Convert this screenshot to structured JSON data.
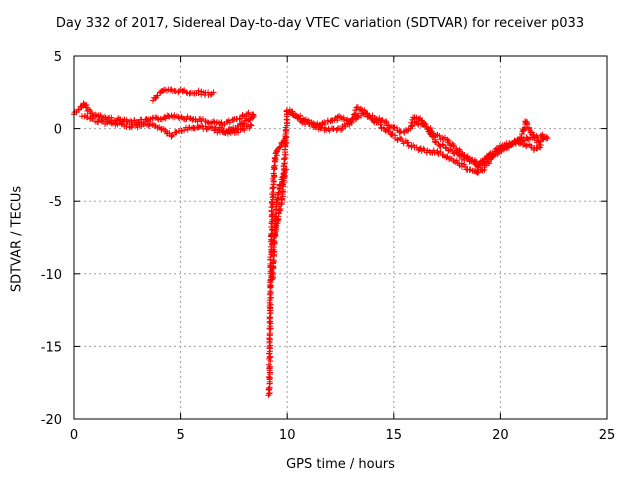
{
  "chart_data": {
    "type": "scatter",
    "title": "Day 332 of 2017, Sidereal Day-to-day VTEC variation (SDTVAR) for receiver p033",
    "xlabel": "GPS time / hours",
    "ylabel": "SDTVAR / TECUs",
    "xlim": [
      0,
      25
    ],
    "ylim": [
      -20,
      5
    ],
    "xticks": [
      0,
      5,
      10,
      15,
      20,
      25
    ],
    "yticks": [
      5,
      0,
      -5,
      -10,
      -15,
      -20
    ],
    "grid": true,
    "marker": "+",
    "series": [
      {
        "name": "SDTVAR",
        "color": "#ff0000",
        "tracks": [
          {
            "x": [
              0.0,
              0.2,
              0.4,
              0.5,
              0.6,
              0.8,
              1.0,
              1.3,
              1.6,
              2.0,
              2.4,
              2.8,
              3.2,
              3.6,
              4.0,
              4.4,
              4.7,
              5.0,
              5.4,
              5.8,
              6.2,
              6.6,
              7.0,
              7.4,
              7.8,
              8.2,
              8.5
            ],
            "y": [
              1.0,
              1.3,
              1.5,
              1.7,
              1.4,
              1.1,
              0.9,
              0.8,
              0.7,
              0.6,
              0.6,
              0.5,
              0.5,
              0.6,
              0.7,
              0.8,
              0.9,
              0.8,
              0.7,
              0.6,
              0.5,
              0.4,
              0.3,
              0.5,
              0.8,
              1.0,
              1.0
            ]
          },
          {
            "x": [
              0.4,
              0.8,
              1.2,
              1.6,
              2.0,
              2.5,
              3.0,
              3.5,
              4.0,
              4.3,
              4.6,
              4.9,
              5.3,
              5.7,
              6.1,
              6.5,
              6.8,
              7.2,
              7.6,
              8.0,
              8.4
            ],
            "y": [
              0.9,
              0.7,
              0.5,
              0.4,
              0.3,
              0.2,
              0.2,
              0.3,
              0.1,
              -0.2,
              -0.5,
              -0.2,
              0.0,
              0.1,
              0.1,
              0.0,
              -0.2,
              -0.3,
              -0.2,
              0.0,
              0.3
            ]
          },
          {
            "x": [
              3.7,
              3.9,
              4.1,
              4.3,
              4.6,
              5.0,
              5.4,
              5.8,
              6.2,
              6.6
            ],
            "y": [
              2.0,
              2.3,
              2.5,
              2.6,
              2.6,
              2.6,
              2.5,
              2.5,
              2.4,
              2.4
            ]
          },
          {
            "x": [
              6.8,
              7.1,
              7.4,
              7.7,
              8.0,
              8.3,
              8.5
            ],
            "y": [
              0.0,
              -0.2,
              -0.1,
              0.1,
              0.4,
              0.8,
              1.0
            ]
          },
          {
            "x": [
              9.15,
              9.17,
              9.19,
              9.2,
              9.22,
              9.24,
              9.26,
              9.28,
              9.3,
              9.33,
              9.36,
              9.4,
              9.45,
              9.5,
              9.55,
              9.6,
              9.7,
              9.8,
              9.9,
              10.0
            ],
            "y": [
              -18.4,
              -16.5,
              -14.5,
              -12.5,
              -10.5,
              -9.0,
              -7.8,
              -6.5,
              -5.3,
              -4.2,
              -3.3,
              -2.6,
              -2.1,
              -1.7,
              -1.5,
              -1.3,
              -1.1,
              -0.9,
              -0.7,
              -0.6
            ]
          },
          {
            "x": [
              9.3,
              9.35,
              9.4,
              9.45,
              9.5,
              9.6,
              9.7,
              9.8,
              9.9,
              10.0
            ],
            "y": [
              -10.5,
              -9.0,
              -7.7,
              -6.5,
              -5.5,
              -4.5,
              -3.8,
              -3.3,
              -3.0,
              -2.8
            ]
          },
          {
            "x": [
              9.4,
              9.6,
              9.8,
              10.0,
              10.3,
              10.6,
              11.0,
              11.5,
              12.0,
              12.5,
              13.0,
              13.5,
              14.0,
              14.5,
              15.0,
              15.5,
              16.0,
              16.5,
              17.0,
              17.5,
              18.0,
              18.5,
              19.0,
              19.5,
              20.0,
              20.5,
              21.0,
              21.5,
              22.0,
              22.3
            ],
            "y": [
              -7.5,
              -6.0,
              -4.5,
              1.3,
              1.0,
              0.8,
              0.4,
              0.2,
              0.5,
              0.8,
              0.5,
              1.0,
              0.8,
              0.5,
              0.0,
              -0.3,
              0.5,
              0.2,
              -0.5,
              -0.8,
              -1.5,
              -2.0,
              -2.5,
              -1.8,
              -1.3,
              -1.0,
              -0.8,
              -0.6,
              -0.5,
              -0.8
            ]
          },
          {
            "x": [
              10.2,
              10.6,
              11.0,
              11.5,
              12.0,
              12.5,
              13.0,
              13.3,
              13.6,
              14.0,
              14.4,
              14.8,
              15.2,
              15.6,
              16.0,
              16.4,
              16.8,
              17.2,
              17.6,
              18.0,
              18.4,
              18.8,
              19.2,
              19.6,
              20.0,
              20.4,
              20.8,
              21.2,
              21.6,
              22.0
            ],
            "y": [
              1.1,
              0.6,
              0.3,
              0.0,
              -0.1,
              0.0,
              0.4,
              1.5,
              1.2,
              0.6,
              0.2,
              -0.3,
              -0.7,
              -1.0,
              -1.3,
              -1.5,
              -1.6,
              -1.7,
              -2.0,
              -2.3,
              -2.7,
              -3.0,
              -2.8,
              -2.0,
              -1.5,
              -1.2,
              -0.9,
              -1.1,
              -1.4,
              -1.2
            ]
          },
          {
            "x": [
              15.8,
              16.0,
              16.2,
              16.4,
              16.6,
              16.8,
              17.0,
              17.4,
              17.8,
              18.2,
              18.6,
              19.0,
              19.4,
              19.8,
              20.2,
              20.6,
              21.0,
              21.2,
              21.4,
              21.8,
              22.2
            ],
            "y": [
              0.5,
              0.8,
              0.7,
              0.4,
              0.0,
              -0.5,
              -1.0,
              -1.3,
              -1.6,
              -2.0,
              -2.2,
              -2.6,
              -2.0,
              -1.6,
              -1.2,
              -1.0,
              -0.5,
              0.5,
              -0.2,
              -1.0,
              -0.6
            ]
          }
        ]
      }
    ]
  }
}
